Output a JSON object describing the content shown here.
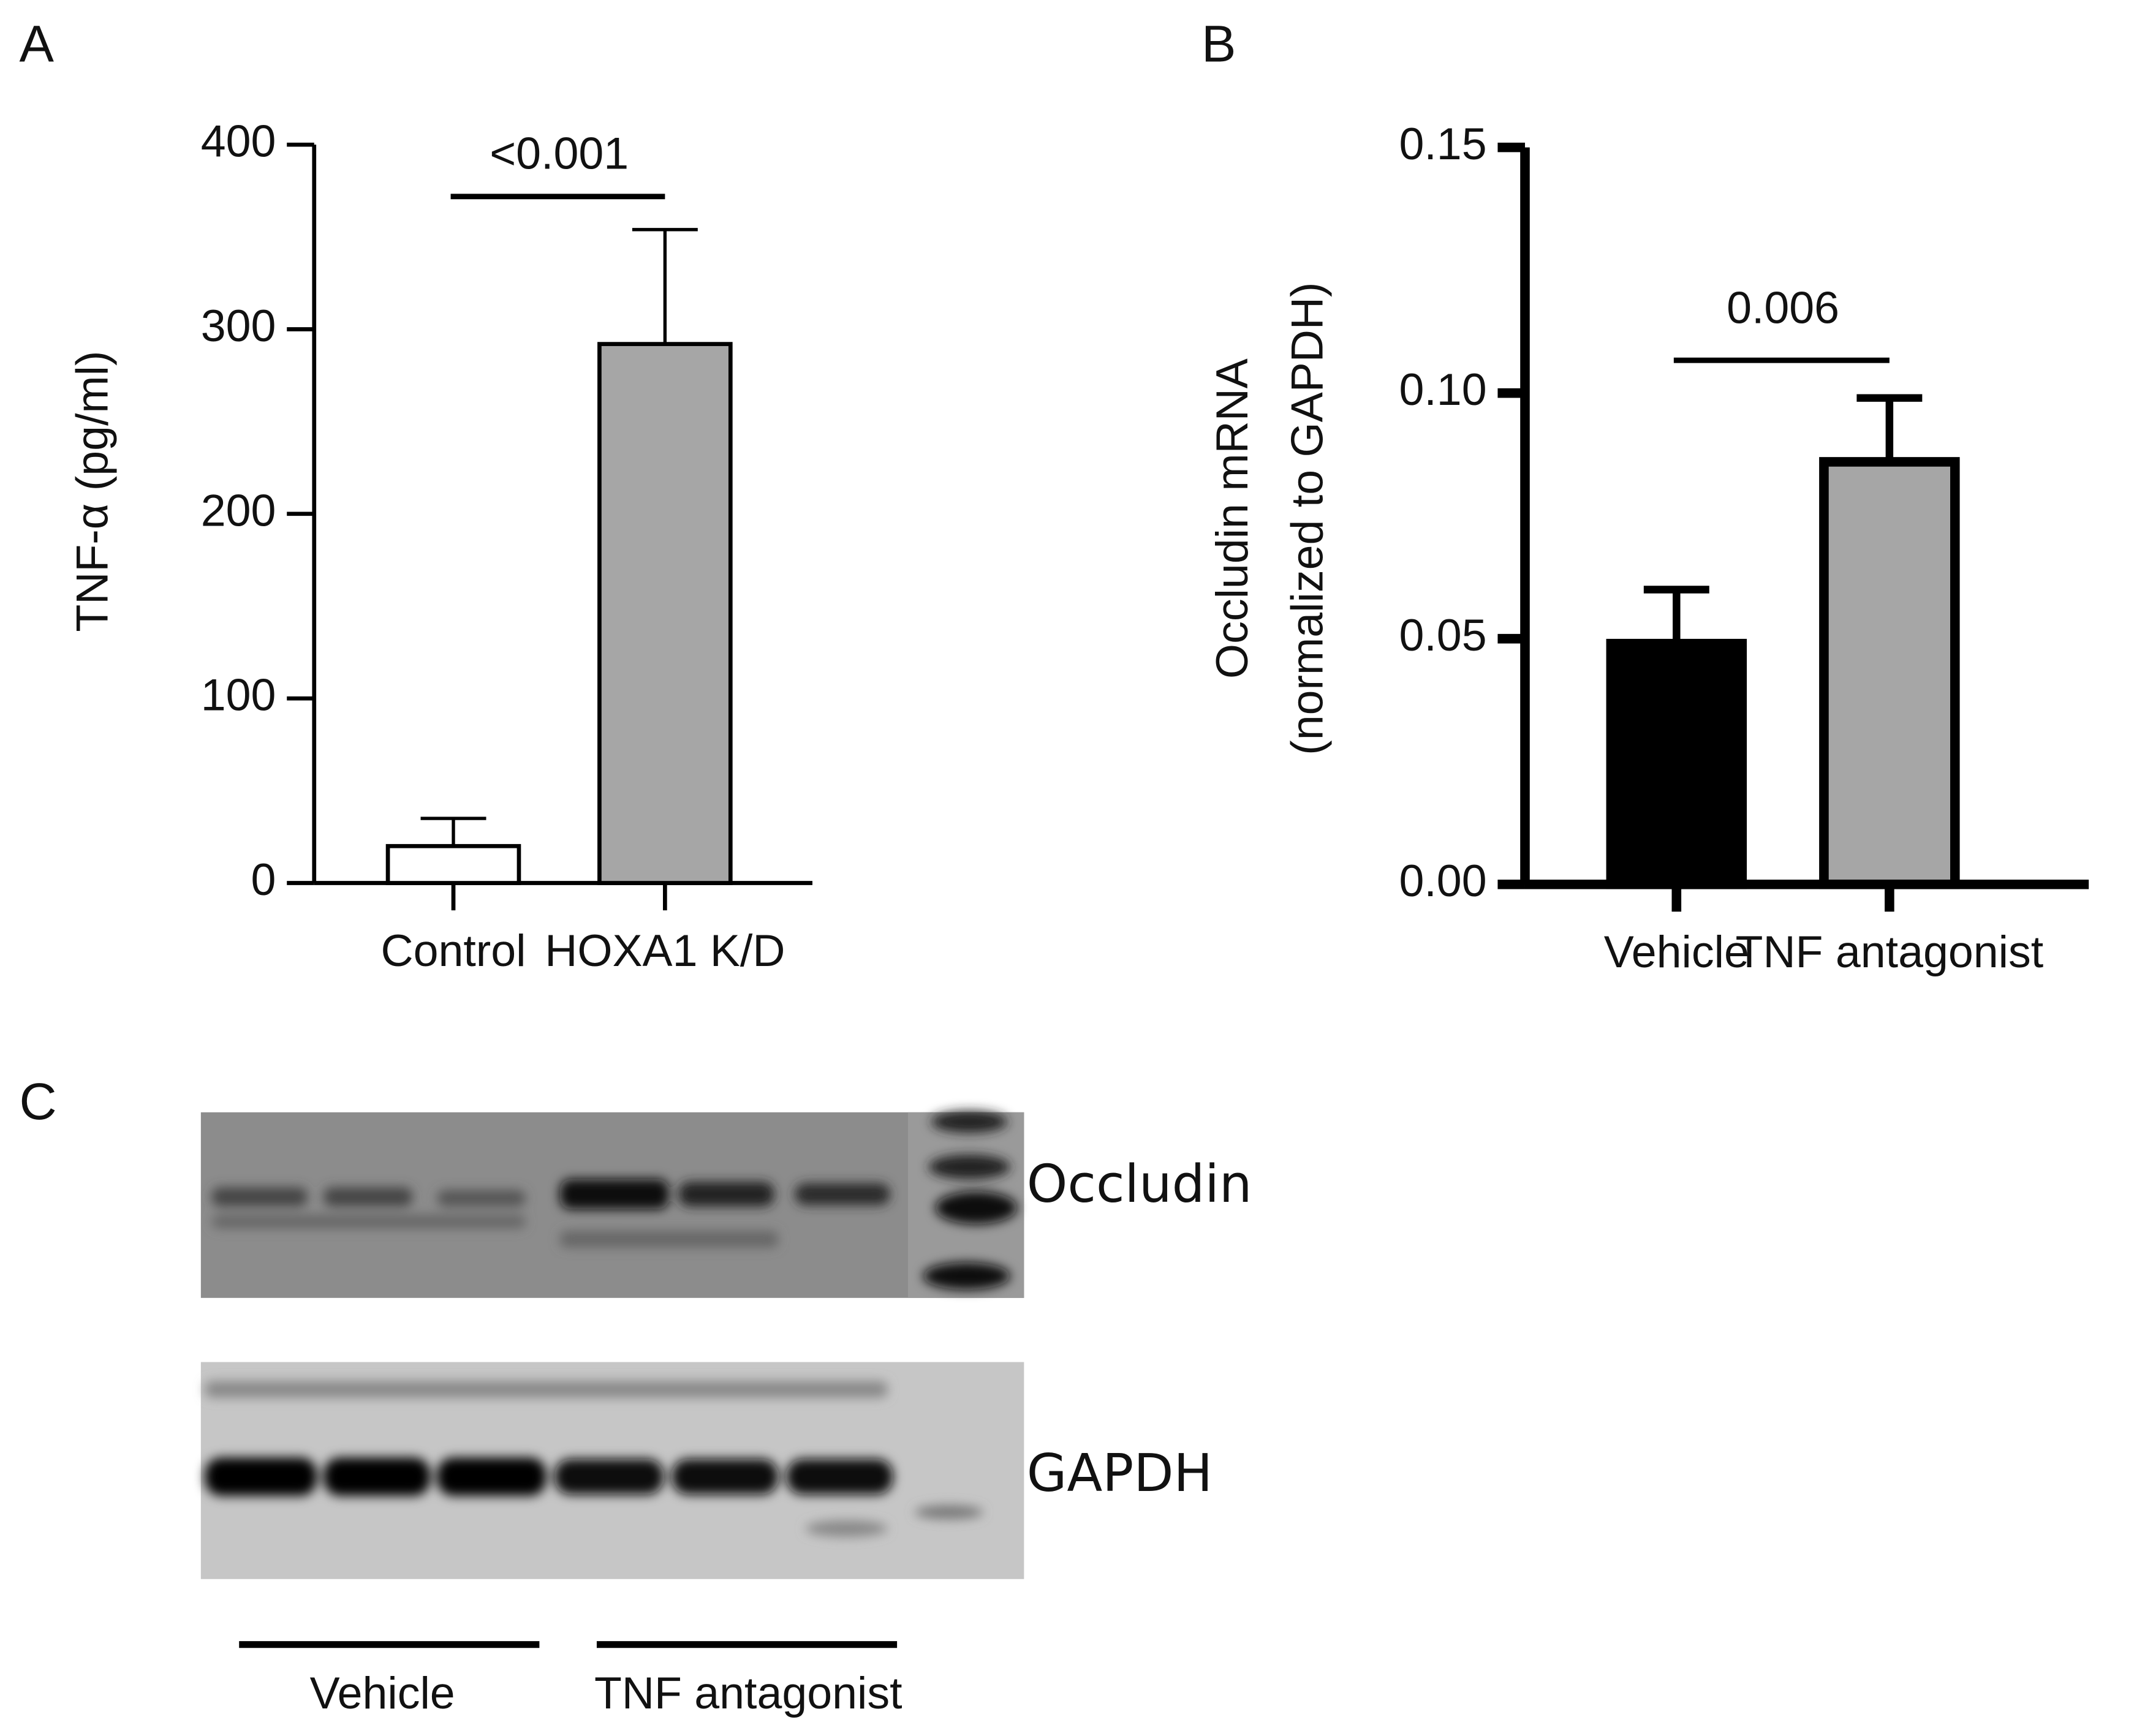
{
  "chart_data": [
    {
      "type": "bar",
      "panel": "A",
      "ylabel": [
        "TNF-α (pg/ml)"
      ],
      "categories": [
        "Control",
        "HOXA1 K/D"
      ],
      "values": [
        20,
        292
      ],
      "errors": [
        15,
        62
      ],
      "colors": [
        "#ffffff",
        "#a6a6a6"
      ],
      "ylim": [
        0,
        400
      ],
      "yticks": [
        0,
        100,
        200,
        300,
        400
      ],
      "annotation": "<0.001"
    },
    {
      "type": "bar",
      "panel": "B",
      "ylabel": [
        "Occludin mRNA",
        "(normalized to GAPDH)"
      ],
      "categories": [
        "Vehicle",
        "TNF antagonist"
      ],
      "values": [
        0.049,
        0.086
      ],
      "errors": [
        0.011,
        0.013
      ],
      "colors": [
        "#000000",
        "#a6a6a6"
      ],
      "ylim": [
        0,
        0.15
      ],
      "yticks": [
        {
          "value": 0,
          "label": "0.00"
        },
        {
          "value": 0.05,
          "label": "0.05"
        },
        {
          "value": 0.1,
          "label": "0.10"
        },
        {
          "value": 0.15,
          "label": "0.15"
        }
      ],
      "annotation": "0.006"
    }
  ],
  "blot": {
    "panel": "C",
    "bands": [
      "Occludin",
      "GAPDH"
    ],
    "groups": [
      "Vehicle",
      "TNF antagonist"
    ]
  }
}
